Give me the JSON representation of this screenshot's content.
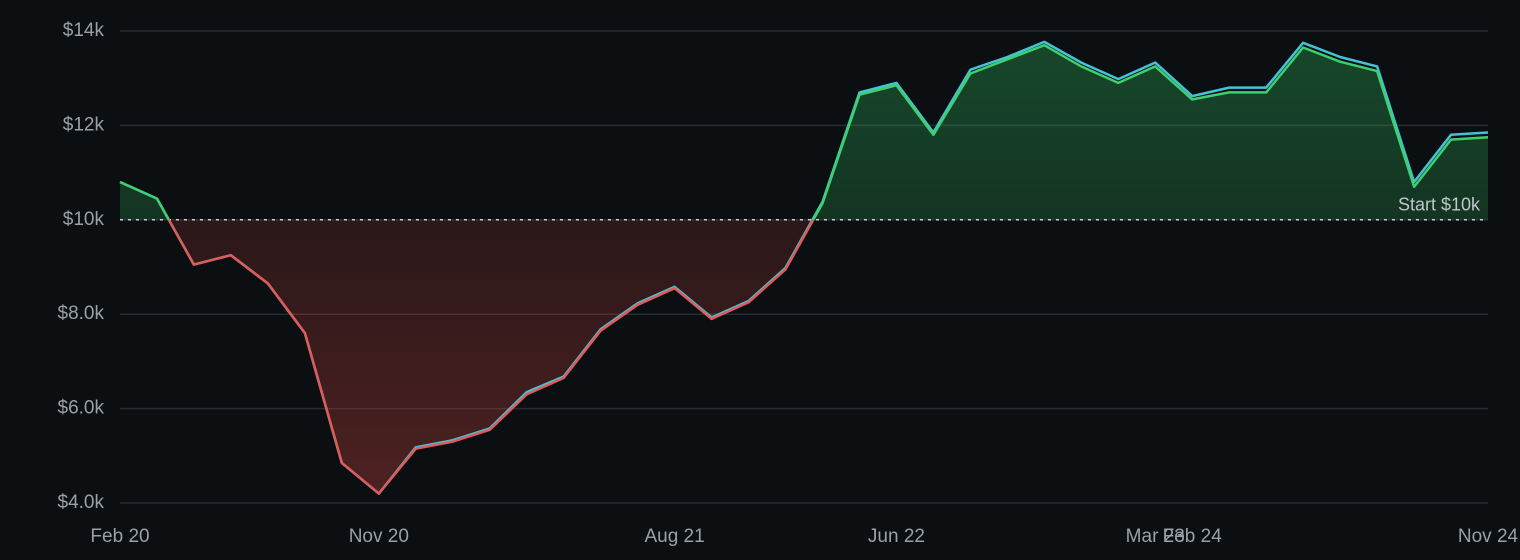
{
  "chart_data": {
    "type": "line",
    "categories": [
      "Feb 20",
      null,
      null,
      null,
      null,
      null,
      null,
      "Nov 20",
      null,
      null,
      null,
      null,
      null,
      null,
      null,
      "Aug 21",
      null,
      null,
      null,
      null,
      null,
      "Jun 22",
      null,
      null,
      null,
      null,
      null,
      null,
      "Mar 23",
      "Feb 24",
      null,
      null,
      null,
      null,
      null,
      null,
      null,
      "Nov 24"
    ],
    "series": [
      {
        "color": "#44c2d6",
        "values": [
          10800,
          10450,
          9050,
          9250,
          8650,
          7600,
          4850,
          4200,
          5180,
          5330,
          5580,
          6350,
          6680,
          7680,
          8230,
          8580,
          7930,
          8280,
          8980,
          10380,
          12700,
          12900,
          11850,
          13180,
          13450,
          13770,
          13330,
          12980,
          13330,
          12620,
          12800,
          12800,
          13750,
          13450,
          13250,
          10800,
          11800,
          11850
        ]
      },
      {
        "color_above": "#3ecf6e",
        "color_below": "#e05a5a",
        "values": [
          10800,
          10450,
          9050,
          9250,
          8650,
          7600,
          4850,
          4200,
          5150,
          5300,
          5550,
          6300,
          6650,
          7650,
          8200,
          8550,
          7900,
          8250,
          8950,
          10350,
          12650,
          12850,
          11800,
          13100,
          13400,
          13700,
          13250,
          12900,
          13250,
          12550,
          12700,
          12700,
          13650,
          13350,
          13150,
          10700,
          11700,
          11750
        ]
      }
    ],
    "reference": {
      "value": 10000,
      "label": "Start $10k"
    },
    "ylim": [
      4000,
      14000
    ],
    "yticks": [
      {
        "value": 4000,
        "label": "$4.0k"
      },
      {
        "value": 6000,
        "label": "$6.0k"
      },
      {
        "value": 8000,
        "label": "$8.0k"
      },
      {
        "value": 10000,
        "label": "$10k"
      },
      {
        "value": 12000,
        "label": "$12k"
      },
      {
        "value": 14000,
        "label": "$14k"
      }
    ],
    "grid": true
  }
}
